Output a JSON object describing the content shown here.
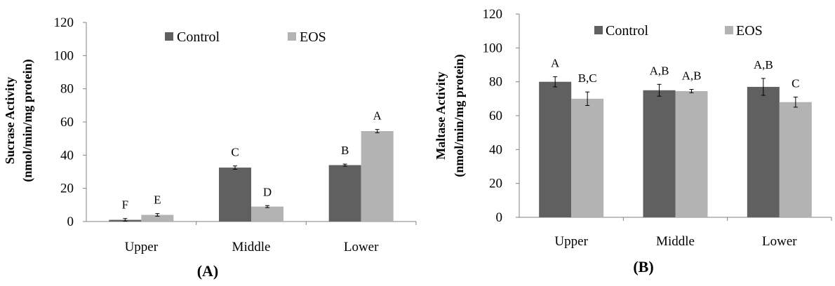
{
  "chart_data": [
    {
      "type": "bar",
      "panel_label": "(A)",
      "categories": [
        "Upper",
        "Middle",
        "Lower"
      ],
      "ylabel_lines": [
        "Sucrase Activity",
        "(nmol/min/mg protein)"
      ],
      "ylim": [
        0,
        120
      ],
      "yticks": [
        "0",
        "20",
        "40",
        "60",
        "80",
        "100",
        "120"
      ],
      "grid": false,
      "legend_position": "top",
      "series": [
        {
          "name": "Control",
          "color": "#606060",
          "values": [
            1,
            32.5,
            34
          ],
          "errors": [
            0.8,
            1,
            0.6
          ],
          "letters": [
            "F",
            "C",
            "B"
          ]
        },
        {
          "name": "EOS",
          "color": "#b3b3b3",
          "values": [
            4,
            9,
            54.5
          ],
          "errors": [
            0.8,
            0.6,
            1
          ],
          "letters": [
            "E",
            "D",
            "A"
          ]
        }
      ]
    },
    {
      "type": "bar",
      "panel_label": "(B)",
      "categories": [
        "Upper",
        "Middle",
        "Lower"
      ],
      "ylabel_lines": [
        "Maltase Activity",
        "(nmol/min/mg protein)"
      ],
      "ylim": [
        0,
        120
      ],
      "yticks": [
        "0",
        "20",
        "40",
        "60",
        "80",
        "100",
        "120"
      ],
      "grid": false,
      "legend_position": "top",
      "series": [
        {
          "name": "Control",
          "color": "#606060",
          "values": [
            80,
            75,
            77
          ],
          "errors": [
            3,
            3.5,
            5
          ],
          "letters": [
            "A",
            "A,B",
            "A,B"
          ]
        },
        {
          "name": "EOS",
          "color": "#b3b3b3",
          "values": [
            70,
            74.5,
            68
          ],
          "errors": [
            4,
            1,
            3
          ],
          "letters": [
            "B,C",
            "A,B",
            "C"
          ]
        }
      ]
    }
  ]
}
